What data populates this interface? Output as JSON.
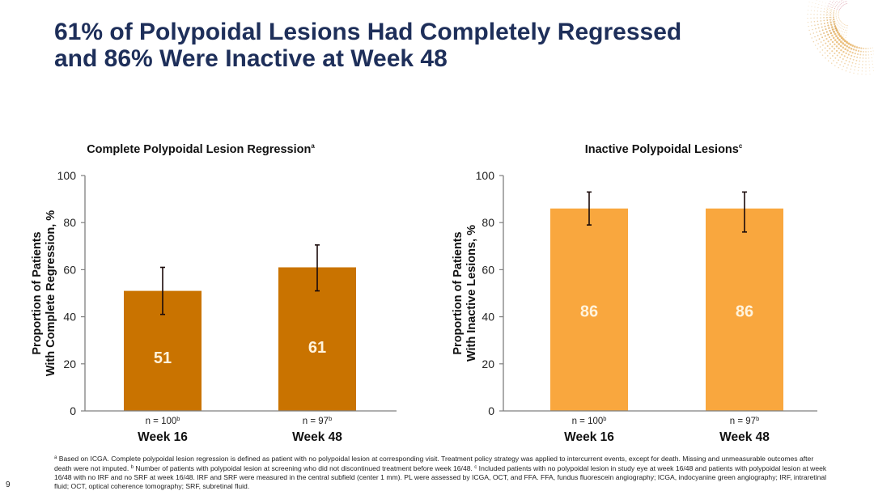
{
  "slide": {
    "title_lines": [
      "61% of Polypoidal Lesions Had Completely Regressed",
      "and 86% Were Inactive at Week 48"
    ],
    "page_number": "9",
    "colors": {
      "title": "#1e2f5a",
      "bar_dark": "#c97300",
      "bar_light": "#f9a73e"
    }
  },
  "footnote": {
    "segments": [
      {
        "sup": "a",
        "text": " Based on ICGA. Complete polypoidal lesion regression is defined as patient with no polypoidal lesion at corresponding visit. Treatment policy strategy was applied to intercurrent events, except for death. Missing and unmeasurable outcomes after death were not imputed. "
      },
      {
        "sup": "b",
        "text": " Number of patients with polypoidal lesion at screening who did not discontinued treatment before week 16/48. "
      },
      {
        "sup": "c",
        "text": " Included patients with no polypoidal lesion in study eye at week 16/48 and patients with polypoidal lesion at week 16/48 with no IRF and no SRF at week 16/48. IRF and SRF were measured in the central subfield (center 1 mm). PL were assessed by ICGA, OCT, and FFA. FFA, fundus fluorescein angiography; ICGA, indocyanine green angiography; IRF, intraretinal fluid; OCT, optical coherence tomography; SRF, subretinal fluid."
      }
    ]
  },
  "chart_data": [
    {
      "type": "bar",
      "title": "Complete Polypoidal Lesion Regression",
      "title_sup": "a",
      "ylabel_lines": [
        "Proportion of Patients",
        "With Complete Regression, %"
      ],
      "xlabel": "",
      "ylim": [
        0,
        100
      ],
      "yticks": [
        0,
        20,
        40,
        60,
        80,
        100
      ],
      "grid": false,
      "categories": [
        "Week 16",
        "Week 48"
      ],
      "n_labels": [
        {
          "text": "n = 100",
          "sup": "b"
        },
        {
          "text": "n = 97",
          "sup": "b"
        }
      ],
      "values": [
        51,
        61
      ],
      "data_labels": [
        "51",
        "61"
      ],
      "error_bars": [
        {
          "low": 41,
          "high": 61
        },
        {
          "low": 51,
          "high": 70.5
        }
      ],
      "color": "#c97300"
    },
    {
      "type": "bar",
      "title": "Inactive Polypoidal Lesions",
      "title_sup": "c",
      "ylabel_lines": [
        "Proportion of Patients",
        "With Inactive Lesions, %"
      ],
      "xlabel": "",
      "ylim": [
        0,
        100
      ],
      "yticks": [
        0,
        20,
        40,
        60,
        80,
        100
      ],
      "grid": false,
      "categories": [
        "Week 16",
        "Week 48"
      ],
      "n_labels": [
        {
          "text": "n = 100",
          "sup": "b"
        },
        {
          "text": "n = 97",
          "sup": "b"
        }
      ],
      "values": [
        86,
        86
      ],
      "data_labels": [
        "86",
        "86"
      ],
      "error_bars": [
        {
          "low": 79,
          "high": 93
        },
        {
          "low": 76,
          "high": 93
        }
      ],
      "color": "#f9a73e"
    }
  ]
}
